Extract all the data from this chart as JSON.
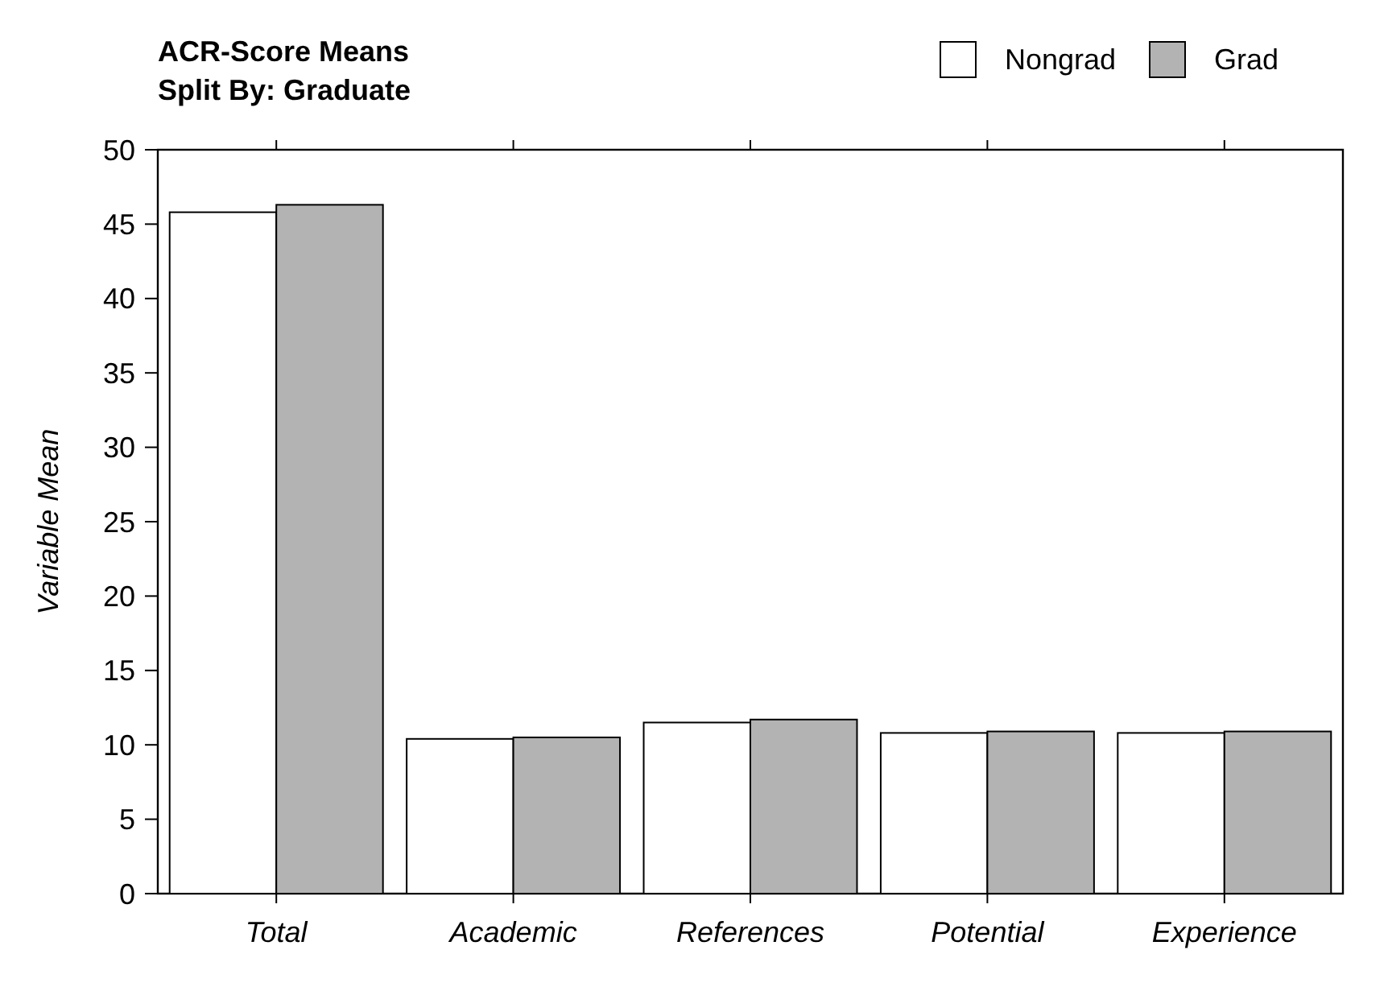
{
  "chart_data": {
    "type": "bar",
    "title": "ACR-Score Means",
    "subtitle": "Split By: Graduate",
    "ylabel": "Variable Mean",
    "categories": [
      "Total",
      "Academic",
      "References",
      "Potential",
      "Experience"
    ],
    "series": [
      {
        "name": "Nongrad",
        "color": "#ffffff",
        "values": [
          45.8,
          10.4,
          11.5,
          10.8,
          10.8
        ]
      },
      {
        "name": "Grad",
        "color": "#b3b3b3",
        "values": [
          46.3,
          10.5,
          11.7,
          10.9,
          10.9
        ]
      }
    ],
    "ylim": [
      0,
      50
    ],
    "yticks": [
      0,
      5,
      10,
      15,
      20,
      25,
      30,
      35,
      40,
      45,
      50
    ],
    "grid": false,
    "legend": "top right"
  }
}
